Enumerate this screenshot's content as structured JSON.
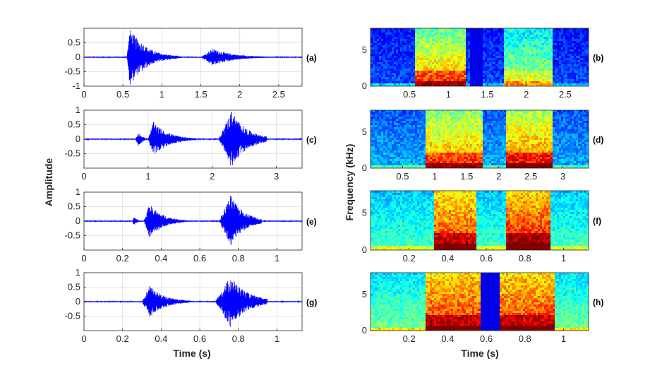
{
  "figure": {
    "waveform_ylabel": "Amplitude",
    "spectrogram_ylabel": "Frequency (kHz)",
    "time_label": "Time (s)"
  },
  "chart_data": [
    {
      "panel": "a",
      "type": "line",
      "label": "(a)",
      "xlim": [
        0,
        2.8
      ],
      "ylim": [
        -1,
        1
      ],
      "xticks": [
        0,
        0.5,
        1,
        1.5,
        2,
        2.5
      ],
      "yticks": [
        -1,
        -0.5,
        0,
        0.5
      ],
      "ytick_labels": [
        "-1",
        "-0.5",
        "0",
        "0.5"
      ],
      "grid": true,
      "color": "#0000ff",
      "segments": [
        {
          "start": 0.55,
          "end": 1.2,
          "peak": 1.0,
          "attack": 0.04
        },
        {
          "start": 0.68,
          "end": 1.25,
          "peak": 0.55,
          "attack": 0.05
        },
        {
          "start": 1.5,
          "end": 2.35,
          "peak": 0.3,
          "attack": 0.15
        }
      ]
    },
    {
      "panel": "b",
      "type": "heatmap",
      "label": "(b)",
      "xlim": [
        0,
        2.8
      ],
      "ylim": [
        0,
        8
      ],
      "xticks": [
        0.5,
        1,
        1.5,
        2,
        2.5
      ],
      "yticks": [
        0,
        5
      ],
      "ytick_labels": [
        "0",
        "5"
      ],
      "bg": 0.2,
      "segments": [
        {
          "start": 0.58,
          "end": 1.22,
          "level": 0.75
        },
        {
          "start": 1.7,
          "end": 2.35,
          "level": 0.55
        }
      ],
      "dark": [
        {
          "start": 1.28,
          "end": 1.45
        }
      ]
    },
    {
      "panel": "c",
      "type": "line",
      "label": "(c)",
      "xlim": [
        0,
        3.4
      ],
      "ylim": [
        -1,
        1
      ],
      "xticks": [
        0,
        1,
        2,
        3
      ],
      "yticks": [
        -0.5,
        0,
        0.5,
        1
      ],
      "ytick_labels": [
        "-0.5",
        "0",
        "0.5",
        "1"
      ],
      "grid": true,
      "color": "#0000ff",
      "segments": [
        {
          "start": 0.8,
          "end": 1.0,
          "peak": 0.25,
          "attack": 0.05
        },
        {
          "start": 1.0,
          "end": 1.75,
          "peak": 0.6,
          "attack": 0.08
        },
        {
          "start": 2.1,
          "end": 2.85,
          "peak": 1.0,
          "attack": 0.2
        }
      ]
    },
    {
      "panel": "d",
      "type": "heatmap",
      "label": "(d)",
      "xlim": [
        0,
        3.4
      ],
      "ylim": [
        0,
        8
      ],
      "xticks": [
        0.5,
        1,
        1.5,
        2,
        2.5,
        3
      ],
      "yticks": [
        0,
        5
      ],
      "ytick_labels": [
        "0",
        "5"
      ],
      "bg": 0.3,
      "segments": [
        {
          "start": 0.85,
          "end": 1.75,
          "level": 0.75
        },
        {
          "start": 2.1,
          "end": 2.85,
          "level": 0.8
        }
      ],
      "dark": []
    },
    {
      "panel": "e",
      "type": "line",
      "label": "(e)",
      "xlim": [
        0,
        1.13
      ],
      "ylim": [
        -1,
        1
      ],
      "xticks": [
        0,
        0.2,
        0.4,
        0.6,
        0.8,
        1
      ],
      "yticks": [
        -0.5,
        0,
        0.5,
        1
      ],
      "ytick_labels": [
        "-0.5",
        "0",
        "0.5",
        "1"
      ],
      "grid": true,
      "color": "#0000ff",
      "segments": [
        {
          "start": 0.25,
          "end": 0.3,
          "peak": 0.15,
          "attack": 0.01
        },
        {
          "start": 0.31,
          "end": 0.53,
          "peak": 0.6,
          "attack": 0.03
        },
        {
          "start": 0.7,
          "end": 0.92,
          "peak": 0.9,
          "attack": 0.06
        }
      ]
    },
    {
      "panel": "f",
      "type": "heatmap",
      "label": "(f)",
      "xlim": [
        0,
        1.13
      ],
      "ylim": [
        0,
        8
      ],
      "xticks": [
        0.2,
        0.4,
        0.6,
        0.8,
        1
      ],
      "yticks": [
        0,
        5
      ],
      "ytick_labels": [
        "0",
        "5"
      ],
      "bg": 0.45,
      "segments": [
        {
          "start": 0.33,
          "end": 0.55,
          "level": 0.85
        },
        {
          "start": 0.7,
          "end": 0.93,
          "level": 0.9
        }
      ],
      "dark": []
    },
    {
      "panel": "g",
      "type": "line",
      "label": "(g)",
      "xlim": [
        0,
        1.13
      ],
      "ylim": [
        -1,
        1
      ],
      "xticks": [
        0,
        0.2,
        0.4,
        0.6,
        0.8,
        1
      ],
      "yticks": [
        -0.5,
        0,
        0.5,
        1
      ],
      "ytick_labels": [
        "-0.5",
        "0",
        "0.5",
        "1"
      ],
      "grid": true,
      "color": "#0000ff",
      "segments": [
        {
          "start": 0.3,
          "end": 0.55,
          "peak": 0.55,
          "attack": 0.04
        },
        {
          "start": 0.68,
          "end": 0.95,
          "peak": 0.9,
          "attack": 0.08
        }
      ]
    },
    {
      "panel": "h",
      "type": "heatmap",
      "label": "(h)",
      "xlim": [
        0,
        1.13
      ],
      "ylim": [
        0,
        8
      ],
      "xticks": [
        0.2,
        0.4,
        0.6,
        0.8,
        1
      ],
      "yticks": [
        0,
        5
      ],
      "ytick_labels": [
        "0",
        "5"
      ],
      "bg": 0.5,
      "segments": [
        {
          "start": 0.28,
          "end": 0.58,
          "level": 0.85
        },
        {
          "start": 0.66,
          "end": 0.95,
          "level": 0.85
        }
      ],
      "dark": [
        {
          "start": 0.57,
          "end": 0.67
        }
      ]
    }
  ]
}
